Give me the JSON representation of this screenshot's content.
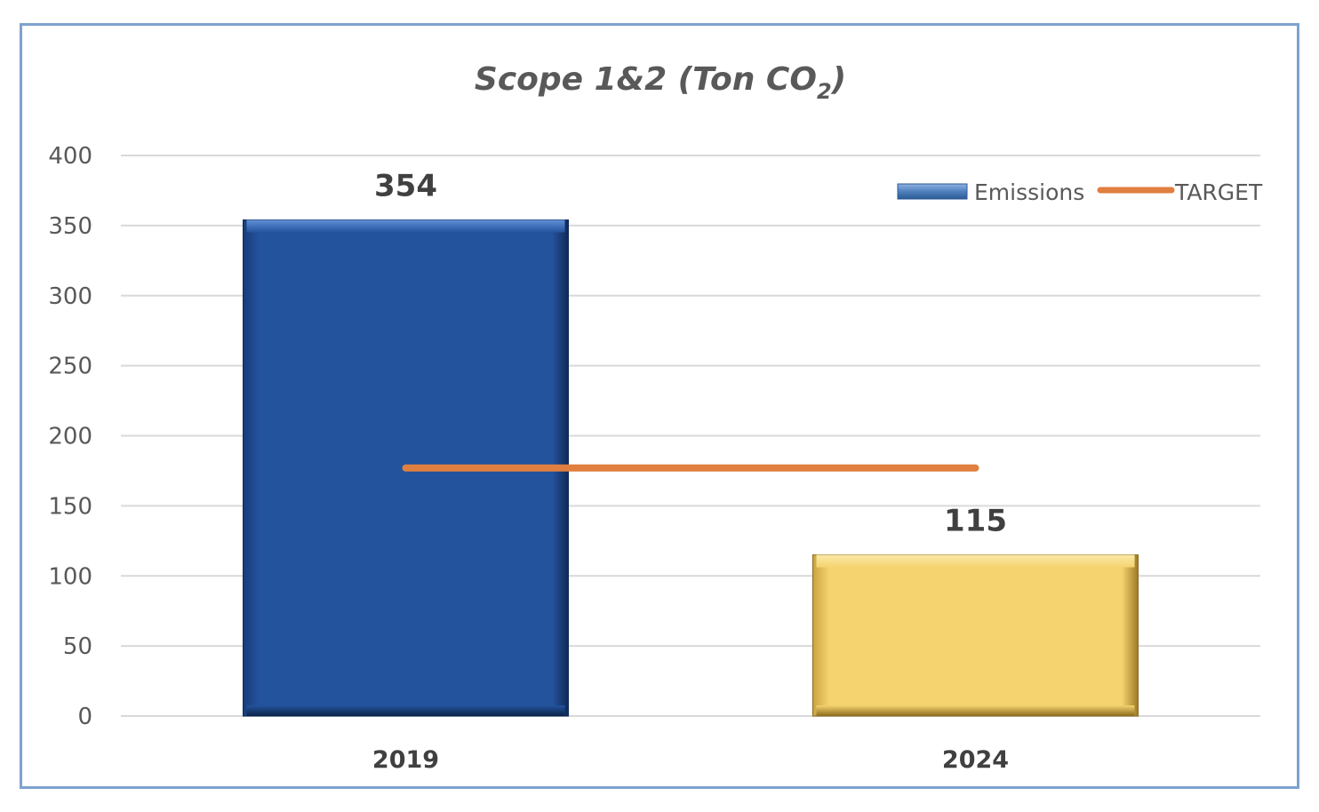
{
  "chart_data": {
    "type": "bar",
    "title": "Scope 1&2 (Ton CO",
    "title_subscript": "2",
    "title_suffix": ")",
    "categories": [
      "2019",
      "2024"
    ],
    "series": [
      {
        "name": "Emissions",
        "values": [
          354,
          115
        ],
        "bar_colors": [
          "#24539d",
          "#f5d36f"
        ]
      },
      {
        "name": "TARGET",
        "type": "line",
        "values": [
          177,
          177
        ],
        "color": "#e07f3f"
      }
    ],
    "data_labels": [
      "354",
      "115"
    ],
    "ylim": [
      0,
      400
    ],
    "yticks": [
      0,
      50,
      100,
      150,
      200,
      250,
      300,
      350,
      400
    ],
    "ytick_labels": [
      "0",
      "50",
      "100",
      "150",
      "200",
      "250",
      "300",
      "350",
      "400"
    ],
    "grid": true,
    "legend_position": "top-right",
    "legend_entries": [
      "Emissions",
      "TARGET"
    ],
    "colors": {
      "emissions_legend": "#4f81bd",
      "target": "#e07f3f",
      "frame_border": "#7ea2cf",
      "gridline": "#d9d9d9"
    }
  }
}
